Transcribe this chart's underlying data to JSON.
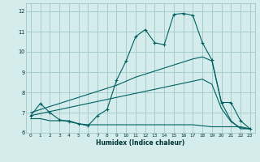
{
  "xlabel": "Humidex (Indice chaleur)",
  "x": [
    0,
    1,
    2,
    3,
    4,
    5,
    6,
    7,
    8,
    9,
    10,
    11,
    12,
    13,
    14,
    15,
    16,
    17,
    18,
    19,
    20,
    21,
    22,
    23
  ],
  "line1": [
    6.85,
    7.45,
    7.0,
    6.65,
    6.55,
    6.45,
    6.35,
    6.85,
    7.15,
    8.6,
    9.55,
    10.75,
    11.1,
    10.45,
    10.35,
    11.85,
    11.9,
    11.8,
    10.45,
    9.6,
    7.5,
    7.5,
    6.6,
    6.2
  ],
  "line2": [
    7.0,
    7.15,
    7.3,
    7.45,
    7.6,
    7.75,
    7.9,
    8.05,
    8.2,
    8.35,
    8.55,
    8.75,
    8.9,
    9.05,
    9.2,
    9.35,
    9.5,
    9.65,
    9.75,
    9.55,
    7.5,
    6.6,
    6.2,
    6.2
  ],
  "line3": [
    6.85,
    6.95,
    7.05,
    7.15,
    7.25,
    7.35,
    7.45,
    7.55,
    7.65,
    7.75,
    7.85,
    7.95,
    8.05,
    8.15,
    8.25,
    8.35,
    8.45,
    8.55,
    8.65,
    8.4,
    7.2,
    6.55,
    6.25,
    6.2
  ],
  "line4": [
    6.7,
    6.7,
    6.6,
    6.6,
    6.6,
    6.45,
    6.4,
    6.4,
    6.4,
    6.4,
    6.4,
    6.4,
    6.4,
    6.4,
    6.4,
    6.4,
    6.4,
    6.4,
    6.35,
    6.3,
    6.3,
    6.3,
    6.3,
    6.2
  ],
  "bg_color": "#d4ecec",
  "grid_color": "#a0c8c8",
  "line_color": "#006060",
  "xlim": [
    -0.5,
    23.5
  ],
  "ylim": [
    6.0,
    12.4
  ],
  "yticks": [
    6,
    7,
    8,
    9,
    10,
    11,
    12
  ],
  "xticks": [
    0,
    1,
    2,
    3,
    4,
    5,
    6,
    7,
    8,
    9,
    10,
    11,
    12,
    13,
    14,
    15,
    16,
    17,
    18,
    19,
    20,
    21,
    22,
    23
  ]
}
